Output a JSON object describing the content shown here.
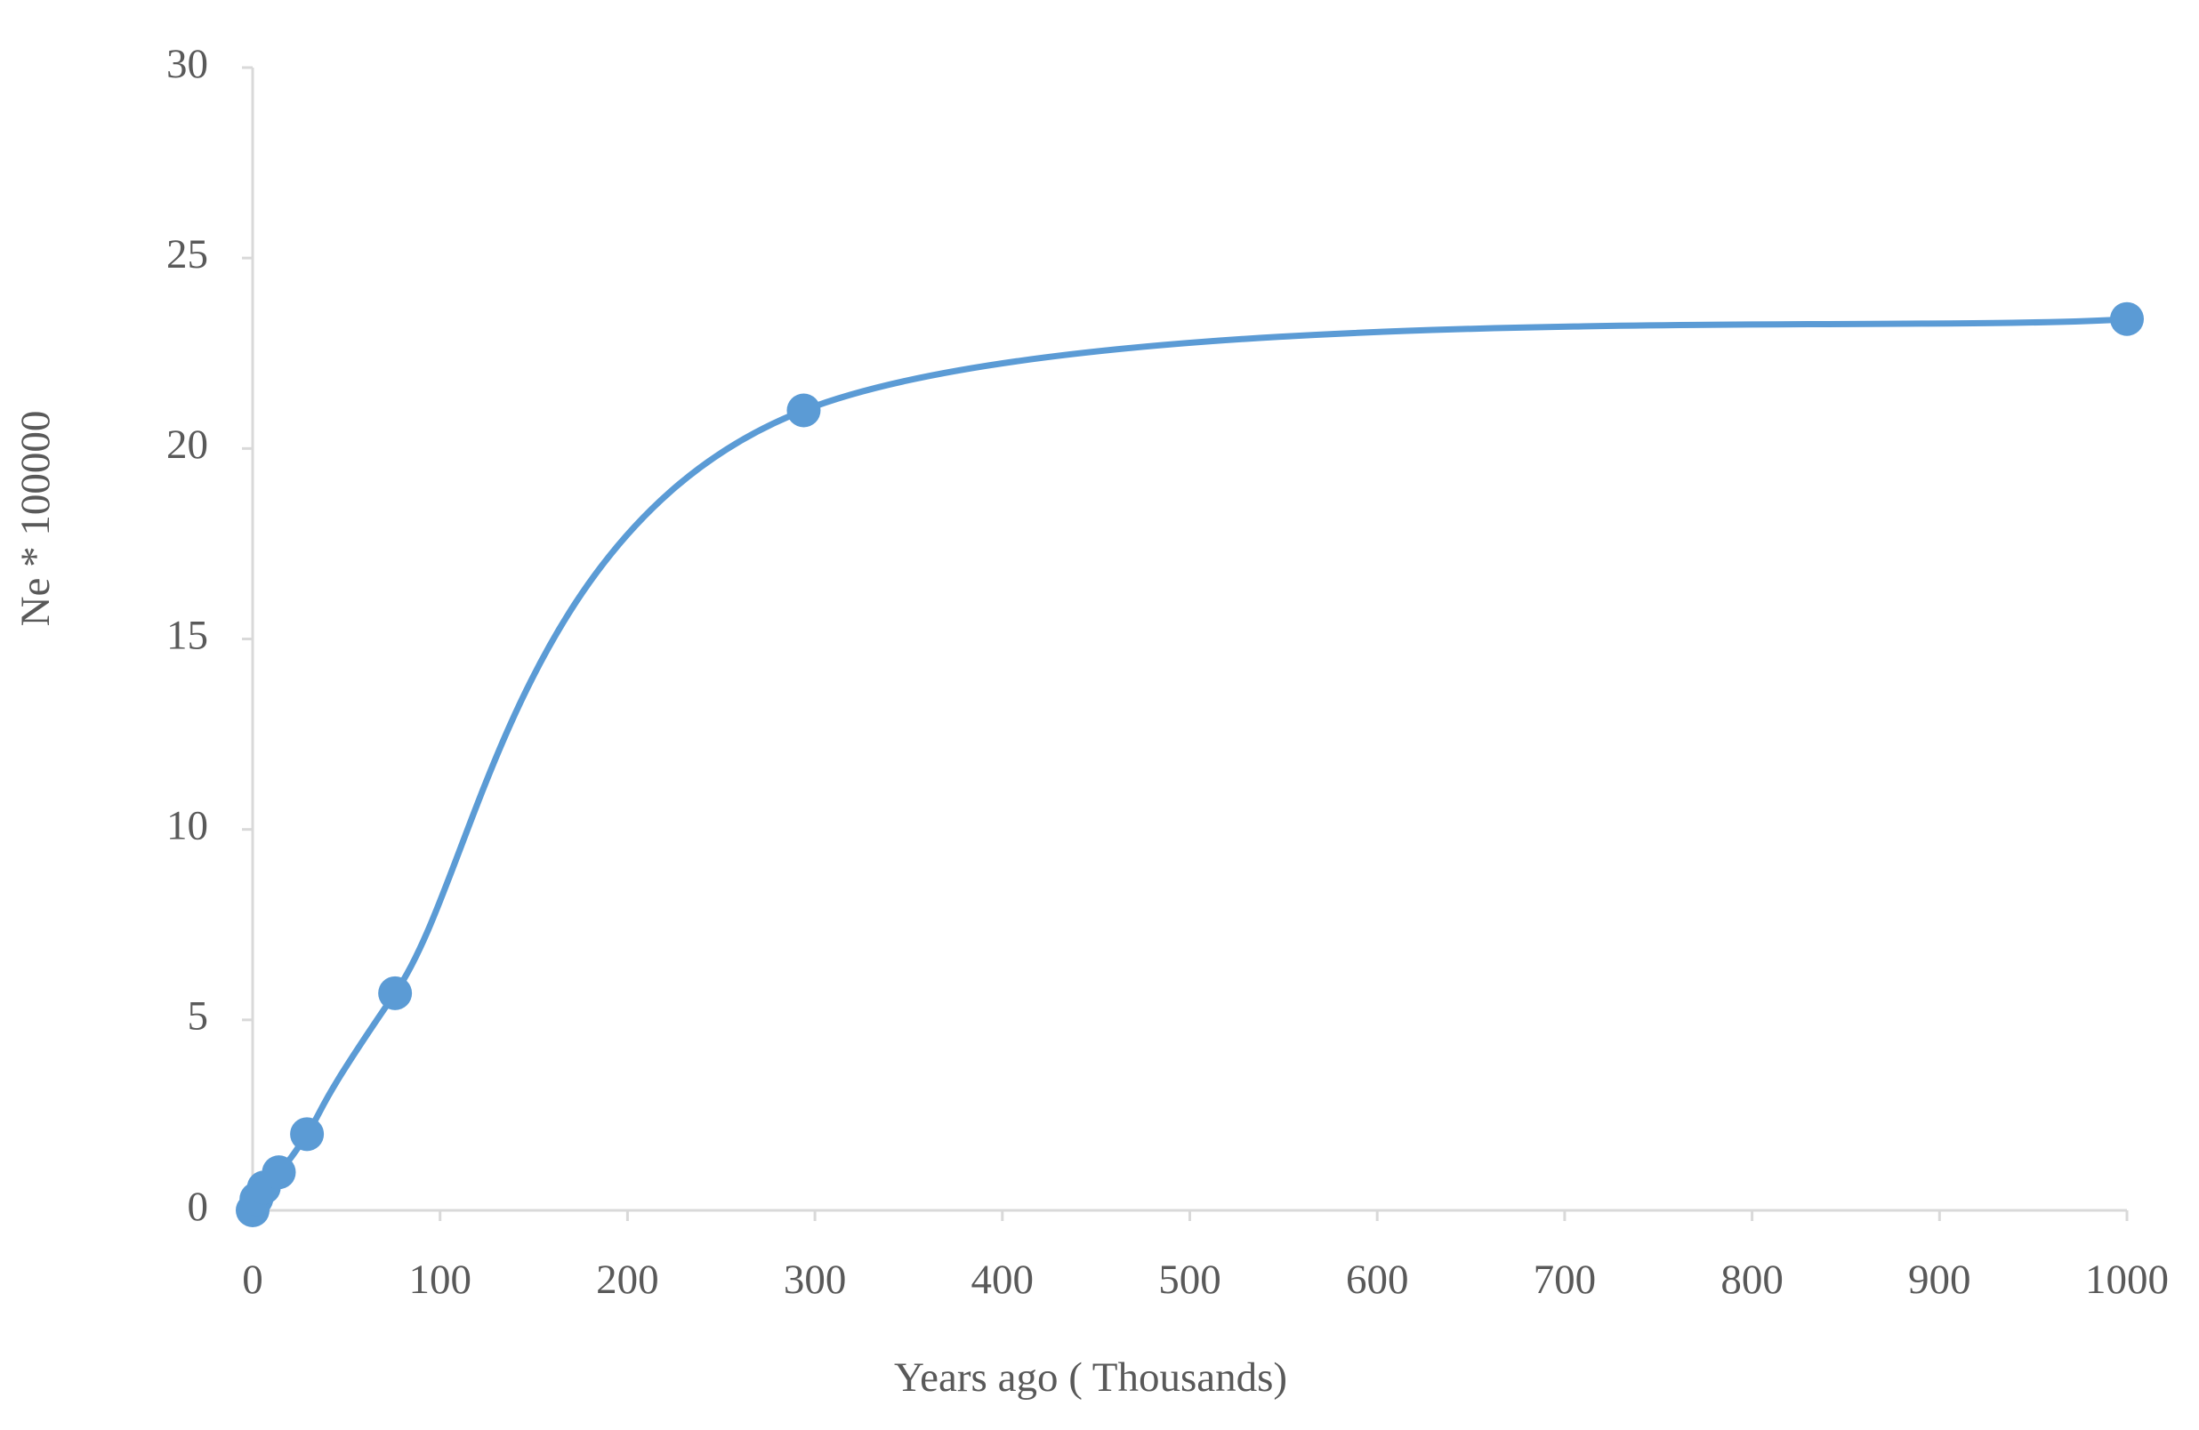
{
  "chart_data": {
    "type": "scatter",
    "x_label": "Years ago ( Thousands)",
    "y_label": "Ne * 100000",
    "series": [
      {
        "color": "#5b9bd5",
        "x": [
          0,
          2,
          6,
          14,
          29,
          76,
          294,
          1000
        ],
        "values": [
          0,
          0.3,
          0.6,
          1.0,
          2.0,
          5.7,
          21.0,
          23.4
        ]
      }
    ],
    "smooth": true,
    "xlim": [
      0,
      1000
    ],
    "xticks": [
      0,
      100,
      200,
      300,
      400,
      500,
      600,
      700,
      800,
      900,
      1000
    ],
    "ylim": [
      0,
      30
    ],
    "yticks": [
      0,
      5,
      10,
      15,
      20,
      25,
      30
    ]
  }
}
